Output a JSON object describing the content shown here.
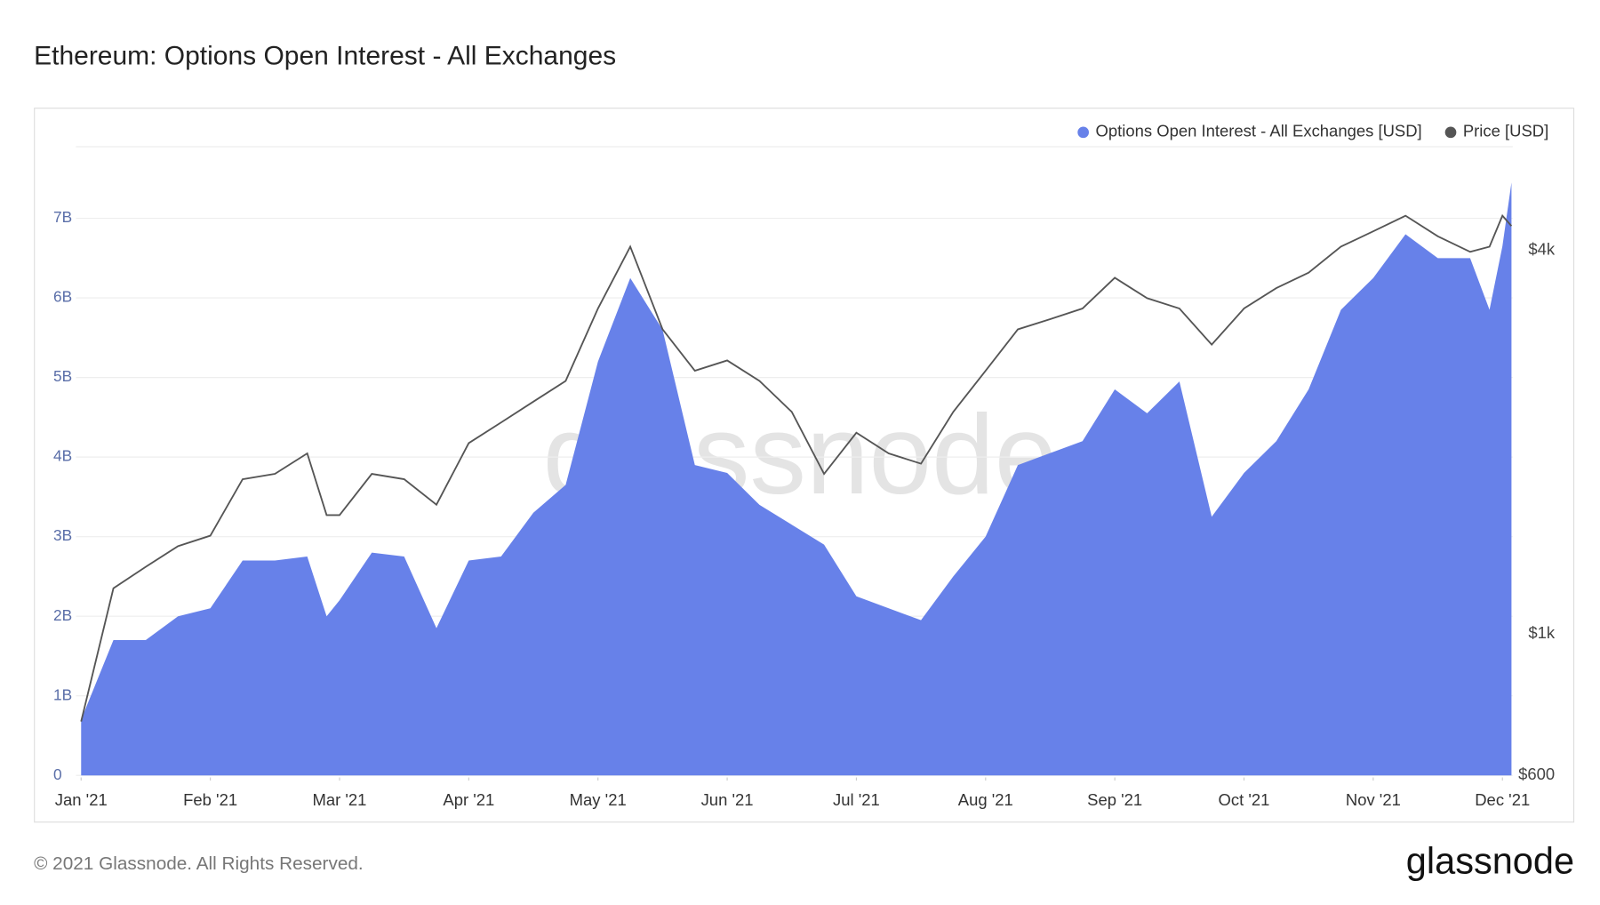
{
  "chart_data": {
    "type": "area",
    "title": "Ethereum: Options Open Interest - All Exchanges",
    "watermark": "glassnode",
    "footer": "© 2021 Glassnode. All Rights Reserved.",
    "logo": "glassnode",
    "legend_position": "top-right",
    "grid": true,
    "x": [
      0,
      0.25,
      0.5,
      0.75,
      1.0,
      1.25,
      1.5,
      1.75,
      1.9,
      2.0,
      2.25,
      2.5,
      2.75,
      3.0,
      3.25,
      3.5,
      3.75,
      4.0,
      4.25,
      4.5,
      4.75,
      5.0,
      5.25,
      5.5,
      5.75,
      6.0,
      6.25,
      6.5,
      6.75,
      7.0,
      7.25,
      7.5,
      7.75,
      8.0,
      8.25,
      8.5,
      8.75,
      9.0,
      9.25,
      9.5,
      9.75,
      10.0,
      10.25,
      10.5,
      10.75,
      10.9,
      11.0,
      11.07
    ],
    "xlim": [
      -0.04,
      11.08
    ],
    "xticks": [
      {
        "value": 0,
        "label": "Jan '21"
      },
      {
        "value": 1,
        "label": "Feb '21"
      },
      {
        "value": 2,
        "label": "Mar '21"
      },
      {
        "value": 3,
        "label": "Apr '21"
      },
      {
        "value": 4,
        "label": "May '21"
      },
      {
        "value": 5,
        "label": "Jun '21"
      },
      {
        "value": 6,
        "label": "Jul '21"
      },
      {
        "value": 7,
        "label": "Aug '21"
      },
      {
        "value": 8,
        "label": "Sep '21"
      },
      {
        "value": 9,
        "label": "Oct '21"
      },
      {
        "value": 10,
        "label": "Nov '21"
      },
      {
        "value": 11,
        "label": "Dec '21"
      }
    ],
    "ylim": [
      0,
      7900000000.0
    ],
    "yticks": [
      {
        "value": 0,
        "label": "0"
      },
      {
        "value": 1000000000.0,
        "label": "1B"
      },
      {
        "value": 2000000000.0,
        "label": "2B"
      },
      {
        "value": 3000000000.0,
        "label": "3B"
      },
      {
        "value": 4000000000.0,
        "label": "4B"
      },
      {
        "value": 5000000000.0,
        "label": "5B"
      },
      {
        "value": 6000000000.0,
        "label": "6B"
      },
      {
        "value": 7000000000.0,
        "label": "7B"
      }
    ],
    "y2lim": [
      600,
      5820
    ],
    "y2scale": "log",
    "y2ticks": [
      {
        "value": 600,
        "label": "$600"
      },
      {
        "value": 1000,
        "label": "$1k"
      },
      {
        "value": 4000,
        "label": "$4k"
      }
    ],
    "series": [
      {
        "name": "Options Open Interest - All Exchanges [USD]",
        "color": "#6781e9",
        "axis": "y",
        "values": [
          700000000.0,
          1700000000.0,
          1700000000.0,
          2000000000.0,
          2100000000.0,
          2700000000.0,
          2700000000.0,
          2750000000.0,
          2000000000.0,
          2200000000.0,
          2800000000.0,
          2750000000.0,
          1850000000.0,
          2700000000.0,
          2750000000.0,
          3300000000.0,
          3650000000.0,
          5200000000.0,
          6250000000.0,
          5600000000.0,
          3900000000.0,
          3800000000.0,
          3400000000.0,
          3150000000.0,
          2900000000.0,
          2250000000.0,
          2100000000.0,
          1950000000.0,
          2500000000.0,
          3000000000.0,
          3900000000.0,
          4050000000.0,
          4200000000.0,
          4850000000.0,
          4550000000.0,
          4950000000.0,
          3250000000.0,
          3800000000.0,
          4200000000.0,
          4850000000.0,
          5850000000.0,
          6250000000.0,
          6800000000.0,
          6500000000.0,
          6500000000.0,
          5850000000.0,
          6650000000.0,
          7450000000.0
        ]
      },
      {
        "name": "Price [USD]",
        "color": "#555555",
        "axis": "y2",
        "values": [
          729,
          1180,
          1275,
          1374,
          1427,
          1750,
          1784,
          1921,
          1537,
          1537,
          1784,
          1750,
          1596,
          1994,
          2148,
          2316,
          2496,
          3243,
          4055,
          3008,
          2590,
          2688,
          2496,
          2232,
          1784,
          2070,
          1921,
          1851,
          2232,
          2590,
          3008,
          3121,
          3243,
          3624,
          3366,
          3243,
          2846,
          3243,
          3491,
          3692,
          4055,
          4286,
          4535,
          4210,
          3980,
          4055,
          4535,
          4369
        ]
      }
    ]
  }
}
